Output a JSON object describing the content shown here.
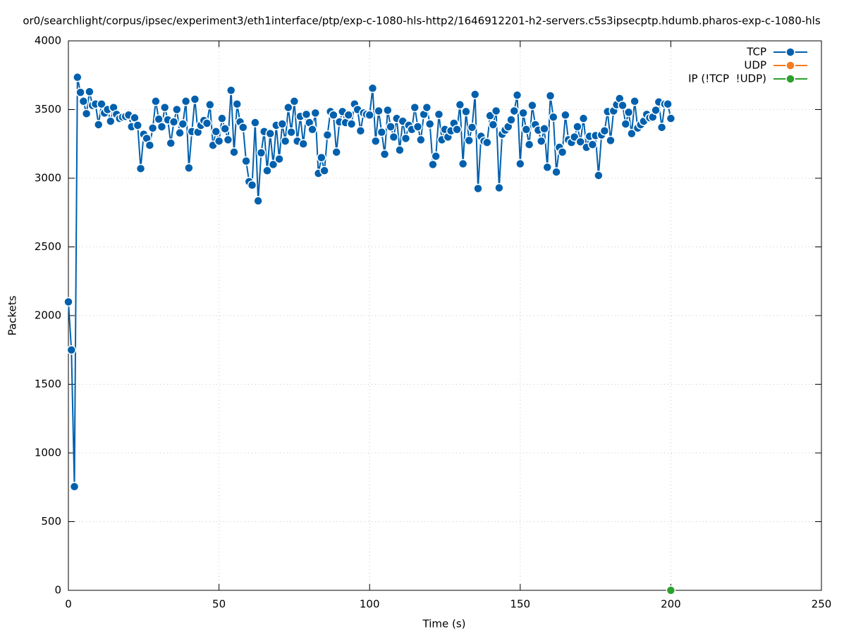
{
  "chart_data": {
    "type": "line",
    "title": "or0/searchlight/corpus/ipsec/experiment3/eth1interface/ptp/exp-c-1080-hls-http2/1646912201-h2-servers.c5s3ipsecptp.hdumb.pharos-exp-c-1080-hls",
    "xlabel": "Time (s)",
    "ylabel": "Packets",
    "xlim": [
      0,
      250
    ],
    "ylim": [
      0,
      4000
    ],
    "xticks": [
      0,
      50,
      100,
      150,
      200,
      250
    ],
    "yticks": [
      0,
      500,
      1000,
      1500,
      2000,
      2500,
      3000,
      3500,
      4000
    ],
    "grid": true,
    "legend": "top right",
    "series": [
      {
        "name": "TCP",
        "color": "#0060ad",
        "x": [
          0,
          1,
          2,
          3,
          4,
          5,
          6,
          7,
          8,
          9,
          10,
          11,
          12,
          13,
          14,
          15,
          16,
          17,
          18,
          19,
          20,
          21,
          22,
          23,
          24,
          25,
          26,
          27,
          28,
          29,
          30,
          31,
          32,
          33,
          34,
          35,
          36,
          37,
          38,
          39,
          40,
          41,
          42,
          43,
          44,
          45,
          46,
          47,
          48,
          49,
          50,
          51,
          52,
          53,
          54,
          55,
          56,
          57,
          58,
          59,
          60,
          61,
          62,
          63,
          64,
          65,
          66,
          67,
          68,
          69,
          70,
          71,
          72,
          73,
          74,
          75,
          76,
          77,
          78,
          79,
          80,
          81,
          82,
          83,
          84,
          85,
          86,
          87,
          88,
          89,
          90,
          91,
          92,
          93,
          94,
          95,
          96,
          97,
          98,
          99,
          100,
          101,
          102,
          103,
          104,
          105,
          106,
          107,
          108,
          109,
          110,
          111,
          112,
          113,
          114,
          115,
          116,
          117,
          118,
          119,
          120,
          121,
          122,
          123,
          124,
          125,
          126,
          127,
          128,
          129,
          130,
          131,
          132,
          133,
          134,
          135,
          136,
          137,
          138,
          139,
          140,
          141,
          142,
          143,
          144,
          145,
          146,
          147,
          148,
          149,
          150,
          151,
          152,
          153,
          154,
          155,
          156,
          157,
          158,
          159,
          160,
          161,
          162,
          163,
          164,
          165,
          166,
          167,
          168,
          169,
          170,
          171,
          172,
          173,
          174,
          175,
          176,
          177,
          178,
          179,
          180,
          181,
          182,
          183,
          184,
          185,
          186,
          187,
          188,
          189,
          190,
          191,
          192,
          193,
          194,
          195,
          196,
          197,
          198,
          199,
          200
        ],
        "values": [
          2100,
          1750,
          755,
          3735,
          3625,
          3560,
          3470,
          3630,
          3530,
          3540,
          3390,
          3540,
          3475,
          3500,
          3415,
          3515,
          3465,
          3435,
          3445,
          3450,
          3460,
          3375,
          3440,
          3385,
          3070,
          3320,
          3290,
          3240,
          3365,
          3560,
          3430,
          3375,
          3515,
          3425,
          3255,
          3410,
          3500,
          3330,
          3395,
          3560,
          3075,
          3340,
          3575,
          3335,
          3385,
          3420,
          3400,
          3535,
          3240,
          3340,
          3270,
          3435,
          3360,
          3280,
          3640,
          3190,
          3540,
          3410,
          3370,
          3125,
          2975,
          2950,
          3405,
          2835,
          3185,
          3340,
          3055,
          3325,
          3100,
          3385,
          3140,
          3395,
          3270,
          3515,
          3335,
          3560,
          3270,
          3450,
          3250,
          3465,
          3405,
          3355,
          3475,
          3035,
          3150,
          3055,
          3315,
          3485,
          3460,
          3190,
          3410,
          3485,
          3405,
          3460,
          3395,
          3540,
          3500,
          3345,
          3475,
          3465,
          3460,
          3655,
          3270,
          3490,
          3335,
          3175,
          3495,
          3375,
          3300,
          3435,
          3205,
          3415,
          3290,
          3385,
          3355,
          3515,
          3375,
          3280,
          3465,
          3515,
          3395,
          3100,
          3160,
          3465,
          3280,
          3355,
          3300,
          3345,
          3400,
          3355,
          3535,
          3105,
          3485,
          3275,
          3370,
          3610,
          2925,
          3305,
          3270,
          3260,
          3455,
          3390,
          3490,
          2930,
          3320,
          3350,
          3375,
          3425,
          3490,
          3605,
          3105,
          3475,
          3355,
          3245,
          3530,
          3390,
          3350,
          3270,
          3360,
          3080,
          3600,
          3445,
          3045,
          3225,
          3190,
          3460,
          3280,
          3260,
          3300,
          3375,
          3265,
          3435,
          3225,
          3305,
          3245,
          3310,
          3020,
          3315,
          3345,
          3485,
          3275,
          3490,
          3535,
          3580,
          3530,
          3395,
          3480,
          3325,
          3560,
          3365,
          3390,
          3415,
          3465,
          3440,
          3445,
          3495,
          3555,
          3370,
          3540,
          3540,
          3435
        ]
      },
      {
        "name": "UDP",
        "color": "#f47b20",
        "x": [],
        "values": []
      },
      {
        "name": "IP (!TCP  !UDP)",
        "color": "#2ca02c",
        "x": [
          200
        ],
        "values": [
          0
        ]
      }
    ]
  }
}
